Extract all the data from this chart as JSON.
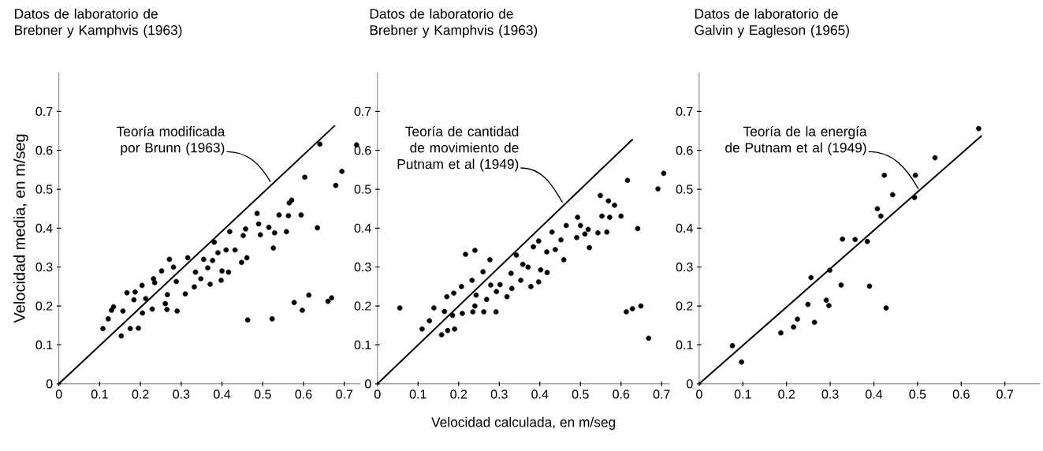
{
  "chart_data": [
    {
      "type": "scatter",
      "title": "Datos de laboratorio de Brebner y Kamphvis (1963)",
      "ylabel": "Velocidad media, en m/seg",
      "xlim": [
        0,
        0.74
      ],
      "ylim": [
        0,
        0.8
      ],
      "xticks": [
        0,
        0.1,
        0.2,
        0.3,
        0.4,
        0.5,
        0.6,
        0.7
      ],
      "yticks": [
        0,
        0.1,
        0.2,
        0.3,
        0.4,
        0.5,
        0.6,
        0.7
      ],
      "series": [
        {
          "marker": "circle",
          "color": "#000000",
          "x": [
            0.108,
            0.121,
            0.129,
            0.134,
            0.153,
            0.157,
            0.167,
            0.175,
            0.187,
            0.184,
            0.195,
            0.204,
            0.205,
            0.213,
            0.229,
            0.235,
            0.232,
            0.252,
            0.261,
            0.265,
            0.266,
            0.271,
            0.281,
            0.29,
            0.288,
            0.31,
            0.316,
            0.332,
            0.335,
            0.348,
            0.355,
            0.365,
            0.371,
            0.377,
            0.381,
            0.39,
            0.398,
            0.4,
            0.41,
            0.416,
            0.419,
            0.432,
            0.448,
            0.452,
            0.458,
            0.461,
            0.463,
            0.486,
            0.49,
            0.494,
            0.515,
            0.526,
            0.523,
            0.529,
            0.54,
            0.558,
            0.563,
            0.565,
            0.571,
            0.577,
            0.594,
            0.597,
            0.603,
            0.613,
            0.634,
            0.64,
            0.66,
            0.669,
            0.679,
            0.694,
            0.73
          ],
          "values": [
            0.142,
            0.167,
            0.189,
            0.198,
            0.123,
            0.187,
            0.234,
            0.142,
            0.236,
            0.216,
            0.143,
            0.253,
            0.182,
            0.219,
            0.192,
            0.26,
            0.27,
            0.29,
            0.206,
            0.191,
            0.229,
            0.32,
            0.3,
            0.187,
            0.263,
            0.231,
            0.324,
            0.249,
            0.287,
            0.27,
            0.32,
            0.298,
            0.256,
            0.317,
            0.364,
            0.337,
            0.266,
            0.29,
            0.344,
            0.287,
            0.391,
            0.344,
            0.312,
            0.381,
            0.398,
            0.324,
            0.164,
            0.438,
            0.411,
            0.383,
            0.402,
            0.349,
            0.167,
            0.388,
            0.434,
            0.391,
            0.432,
            0.465,
            0.472,
            0.209,
            0.434,
            0.189,
            0.531,
            0.228,
            0.401,
            0.616,
            0.212,
            0.221,
            0.51,
            0.546,
            0.614
          ]
        },
        {
          "type": "line",
          "color": "#000000",
          "x": [
            0,
            0.677
          ],
          "values": [
            0,
            0.664
          ]
        }
      ],
      "annotations": [
        {
          "text": "Teoría modificada por Brunn (1963)",
          "x": 0.519,
          "y": 0.519
        }
      ]
    },
    {
      "type": "scatter",
      "title": "Datos de laboratorio de Brebner y Kamphvis (1963)",
      "xlabel": "Velocidad calculada, en m/seg",
      "xlim": [
        0,
        0.72
      ],
      "ylim": [
        0,
        0.8
      ],
      "xticks": [
        0,
        0.1,
        0.2,
        0.3,
        0.4,
        0.5,
        0.6,
        0.7
      ],
      "yticks": [
        0,
        0.1,
        0.2,
        0.3,
        0.4,
        0.5,
        0.6,
        0.7
      ],
      "series": [
        {
          "marker": "circle",
          "color": "#000000",
          "x": [
            0.055,
            0.11,
            0.128,
            0.139,
            0.158,
            0.165,
            0.173,
            0.171,
            0.19,
            0.188,
            0.185,
            0.207,
            0.209,
            0.217,
            0.235,
            0.24,
            0.233,
            0.24,
            0.243,
            0.26,
            0.262,
            0.269,
            0.277,
            0.279,
            0.292,
            0.293,
            0.302,
            0.319,
            0.329,
            0.331,
            0.342,
            0.353,
            0.358,
            0.371,
            0.378,
            0.384,
            0.397,
            0.397,
            0.402,
            0.417,
            0.418,
            0.43,
            0.438,
            0.452,
            0.459,
            0.465,
            0.491,
            0.493,
            0.5,
            0.511,
            0.519,
            0.522,
            0.543,
            0.549,
            0.553,
            0.565,
            0.569,
            0.572,
            0.584,
            0.6,
            0.613,
            0.616,
            0.628,
            0.641,
            0.649,
            0.668,
            0.691,
            0.705
          ],
          "values": [
            0.195,
            0.141,
            0.162,
            0.195,
            0.126,
            0.186,
            0.137,
            0.224,
            0.141,
            0.233,
            0.176,
            0.25,
            0.181,
            0.333,
            0.185,
            0.343,
            0.266,
            0.2,
            0.228,
            0.288,
            0.185,
            0.217,
            0.319,
            0.254,
            0.185,
            0.237,
            0.255,
            0.224,
            0.284,
            0.245,
            0.331,
            0.266,
            0.307,
            0.3,
            0.25,
            0.352,
            0.262,
            0.367,
            0.293,
            0.339,
            0.286,
            0.39,
            0.345,
            0.37,
            0.319,
            0.407,
            0.376,
            0.428,
            0.407,
            0.385,
            0.397,
            0.35,
            0.388,
            0.484,
            0.431,
            0.39,
            0.47,
            0.428,
            0.459,
            0.431,
            0.185,
            0.523,
            0.193,
            0.399,
            0.2,
            0.117,
            0.501,
            0.541
          ]
        },
        {
          "type": "line",
          "color": "#000000",
          "x": [
            0,
            0.629
          ],
          "values": [
            0,
            0.629
          ]
        }
      ],
      "annotations": [
        {
          "text": "Teoría de cantidad de movimiento de Putnam et al (1949)",
          "x": 0.456,
          "y": 0.466
        }
      ]
    },
    {
      "type": "scatter",
      "title": "Datos de laboratorio de Galvin y Eagleson (1965)",
      "xlim": [
        0,
        0.78
      ],
      "ylim": [
        0,
        0.8
      ],
      "xticks": [
        0,
        0.1,
        0.2,
        0.3,
        0.4,
        0.5,
        0.6,
        0.7
      ],
      "yticks": [
        0,
        0.1,
        0.2,
        0.3,
        0.4,
        0.5,
        0.6,
        0.7
      ],
      "series": [
        {
          "marker": "circle",
          "color": "#000000",
          "x": [
            0.076,
            0.097,
            0.187,
            0.216,
            0.225,
            0.249,
            0.256,
            0.264,
            0.291,
            0.297,
            0.299,
            0.325,
            0.328,
            0.357,
            0.385,
            0.39,
            0.408,
            0.416,
            0.424,
            0.428,
            0.443,
            0.493,
            0.495,
            0.54,
            0.64
          ],
          "values": [
            0.098,
            0.056,
            0.131,
            0.146,
            0.166,
            0.204,
            0.273,
            0.158,
            0.215,
            0.201,
            0.292,
            0.254,
            0.372,
            0.371,
            0.366,
            0.251,
            0.45,
            0.431,
            0.536,
            0.195,
            0.486,
            0.479,
            0.536,
            0.581,
            0.656
          ]
        },
        {
          "type": "line",
          "color": "#000000",
          "x": [
            0,
            0.647
          ],
          "values": [
            0,
            0.638
          ]
        }
      ],
      "annotations": [
        {
          "text": "Teoría de la energía de Putnam et al (1949)",
          "x": 0.502,
          "y": 0.501
        }
      ]
    }
  ]
}
